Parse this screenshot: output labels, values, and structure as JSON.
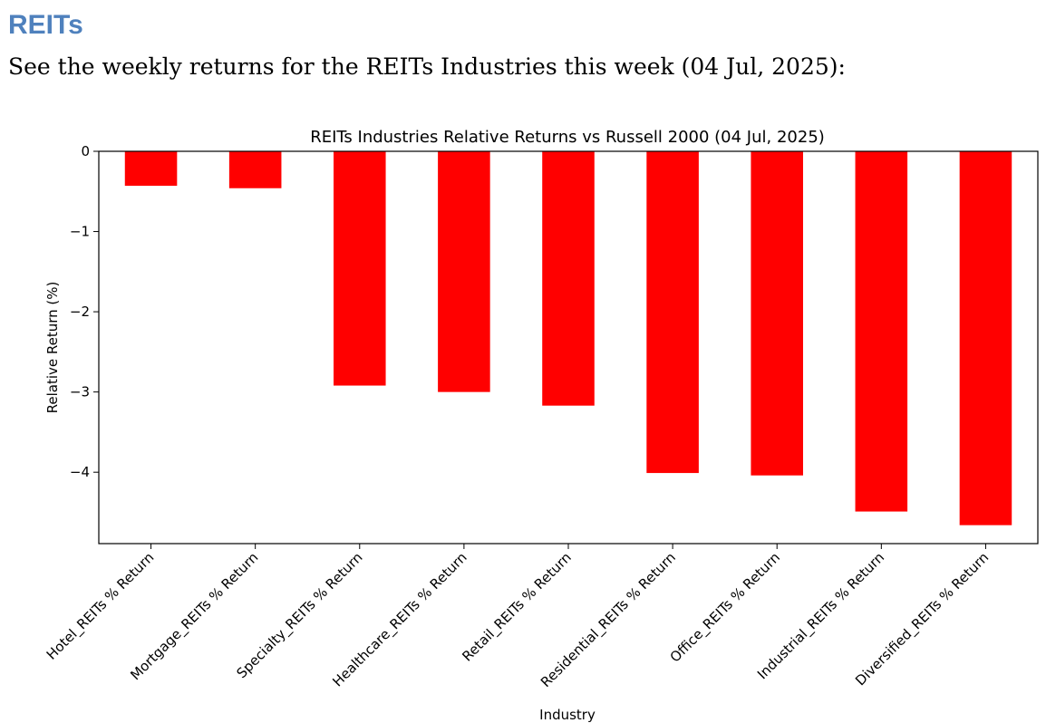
{
  "section": {
    "heading": "REITs",
    "intro": "See the weekly returns for the REITs Industries this week (04 Jul, 2025):"
  },
  "colors": {
    "heading": "#4f81bd",
    "bar": "#ff0000",
    "axis": "#000000"
  },
  "chart_data": {
    "type": "bar",
    "title": "REITs Industries Relative Returns vs Russell 2000 (04 Jul, 2025)",
    "xlabel": "Industry",
    "ylabel": "Relative Return (%)",
    "categories": [
      "Hotel_REITs % Return",
      "Mortgage_REITs % Return",
      "Specialty_REITs % Return",
      "Healthcare_REITs % Return",
      "Retail_REITs % Return",
      "Residential_REITs % Return",
      "Office_REITs % Return",
      "Industrial_REITs % Return",
      "Diversified_REITs % Return"
    ],
    "values": [
      -0.43,
      -0.46,
      -2.92,
      -3.0,
      -3.17,
      -4.01,
      -4.04,
      -4.49,
      -4.66
    ],
    "ylim": [
      -4.89,
      0
    ],
    "yticks": [
      0,
      -1,
      -2,
      -3,
      -4
    ],
    "ytick_labels": [
      "0",
      "−1",
      "−2",
      "−3",
      "−4"
    ],
    "grid": false,
    "legend": false
  }
}
